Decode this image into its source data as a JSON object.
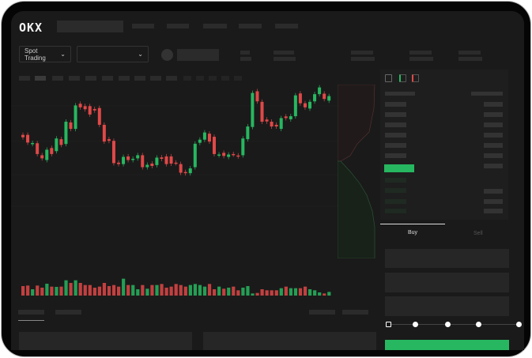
{
  "header": {
    "logo": "OKX"
  },
  "market": {
    "mode_label": "Spot Trading",
    "pair_select": ""
  },
  "trade": {
    "tabs": [
      {
        "label": "Buy"
      },
      {
        "label": "Sell"
      }
    ],
    "active_tab": "Buy",
    "slider_steps": 5,
    "slider_value": 0
  },
  "colors": {
    "up": "#27b760",
    "down": "#e04848",
    "bg": "#1a1a1a"
  },
  "icons": [
    "chevron-down-icon",
    "orderbook-both-icon",
    "orderbook-bids-icon",
    "orderbook-asks-icon"
  ],
  "chart_data": {
    "type": "candlestick",
    "candles": [
      [
        220,
        210
      ],
      [
        220,
        188
      ],
      [
        182,
        186
      ],
      [
        185,
        140
      ],
      [
        135,
        122
      ],
      [
        115,
        158
      ],
      [
        165,
        140
      ],
      [
        152,
        205
      ],
      [
        202,
        178
      ],
      [
        182,
        275
      ],
      [
        272,
        245
      ],
      [
        245,
        343
      ],
      [
        350,
        335
      ],
      [
        340,
        327
      ],
      [
        340,
        305
      ],
      [
        328,
        322
      ],
      [
        332,
        262
      ],
      [
        262,
        192
      ],
      [
        202,
        195
      ],
      [
        195,
        102
      ],
      [
        104,
        98
      ],
      [
        98,
        128
      ],
      [
        130,
        115
      ],
      [
        115,
        120
      ],
      [
        122,
        135
      ],
      [
        135,
        85
      ],
      [
        85,
        95
      ],
      [
        100,
        90
      ],
      [
        94,
        125
      ],
      [
        126,
        120
      ],
      [
        130,
        98
      ],
      [
        130,
        100
      ],
      [
        104,
        102
      ],
      [
        98,
        62
      ],
      [
        65,
        60
      ],
      [
        60,
        80
      ],
      [
        85,
        183
      ],
      [
        187,
        200
      ],
      [
        200,
        230
      ],
      [
        225,
        192
      ],
      [
        212,
        140
      ],
      [
        135,
        138
      ],
      [
        145,
        132
      ],
      [
        128,
        138
      ],
      [
        140,
        138
      ],
      [
        134,
        130
      ],
      [
        135,
        205
      ],
      [
        202,
        255
      ],
      [
        253,
        395
      ],
      [
        402,
        360
      ],
      [
        358,
        275
      ],
      [
        284,
        276
      ],
      [
        275,
        255
      ],
      [
        262,
        255
      ],
      [
        245,
        290
      ],
      [
        297,
        290
      ],
      [
        285,
        298
      ],
      [
        298,
        385
      ],
      [
        393,
        352
      ],
      [
        352,
        335
      ],
      [
        330,
        358
      ],
      [
        360,
        390
      ],
      [
        390,
        418
      ],
      [
        392,
        370
      ],
      [
        363,
        382
      ]
    ],
    "volume": [
      36,
      38,
      24,
      38,
      30,
      45,
      34,
      33,
      34,
      58,
      48,
      58,
      48,
      40,
      40,
      30,
      34,
      48,
      36,
      40,
      34,
      64,
      40,
      40,
      24,
      40,
      26,
      40,
      40,
      44,
      30,
      34,
      44,
      40,
      34,
      40,
      44,
      40,
      34,
      44,
      24,
      34,
      26,
      30,
      34,
      20,
      30,
      36,
      8,
      10,
      24,
      20,
      20,
      20,
      28,
      34,
      28,
      28,
      28,
      34,
      24,
      20,
      12,
      8,
      14
    ]
  }
}
